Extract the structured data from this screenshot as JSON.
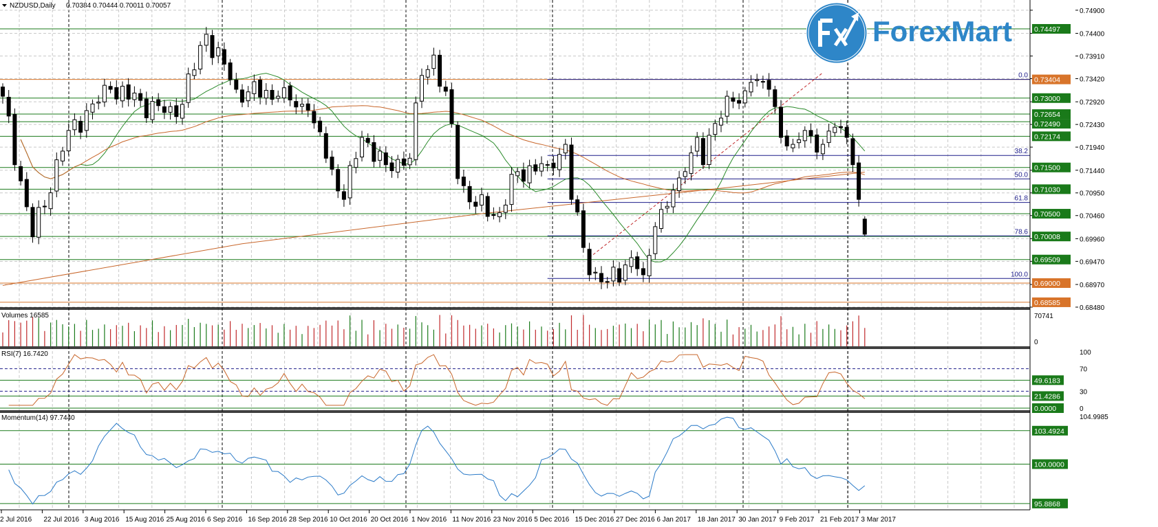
{
  "header": {
    "symbol": "NZDUSD,Daily",
    "ohlc": "0.70384 0.70444 0.70011 0.70057"
  },
  "logo": {
    "text": "ForexMart",
    "mark": "Fx"
  },
  "colors": {
    "up": "#1a7a1a",
    "down": "#c0282a",
    "level_green": "#1a7a1a",
    "level_orange": "#d8742a",
    "fib": "#1d1d8a",
    "ma_fast": "#2a8a2a",
    "ma_slow": "#c8662a",
    "rsi": "#c8662a",
    "momentum": "#2a7ac8"
  },
  "chart_data": {
    "type": "candlestick",
    "title": "NZDUSD,Daily",
    "ylim": [
      0.6848,
      0.749
    ],
    "bar_count": 145,
    "close_anchors": [
      [
        0,
        0.7304
      ],
      [
        5,
        0.7
      ],
      [
        11,
        0.723
      ],
      [
        18,
        0.7319
      ],
      [
        29,
        0.726
      ],
      [
        34,
        0.7438
      ],
      [
        39,
        0.7319
      ],
      [
        46,
        0.7304
      ],
      [
        51,
        0.7274
      ],
      [
        54,
        0.717
      ],
      [
        57,
        0.7081
      ],
      [
        60,
        0.7215
      ],
      [
        64,
        0.7156
      ],
      [
        68,
        0.717
      ],
      [
        70,
        0.7349
      ],
      [
        72,
        0.7393
      ],
      [
        75,
        0.7245
      ],
      [
        76,
        0.7126
      ],
      [
        79,
        0.7066
      ],
      [
        83,
        0.7052
      ],
      [
        86,
        0.7141
      ],
      [
        91,
        0.7156
      ],
      [
        94,
        0.72
      ],
      [
        95,
        0.7081
      ],
      [
        97,
        0.6977
      ],
      [
        98,
        0.6918
      ],
      [
        101,
        0.6903
      ],
      [
        105,
        0.6955
      ],
      [
        107,
        0.6918
      ],
      [
        109,
        0.7022
      ],
      [
        111,
        0.7066
      ],
      [
        114,
        0.7141
      ],
      [
        116,
        0.7215
      ],
      [
        117,
        0.7156
      ],
      [
        119,
        0.7245
      ],
      [
        121,
        0.7304
      ],
      [
        123,
        0.7289
      ],
      [
        125,
        0.7334
      ],
      [
        128,
        0.7319
      ],
      [
        130,
        0.7215
      ],
      [
        132,
        0.72
      ],
      [
        134,
        0.723
      ],
      [
        137,
        0.72
      ],
      [
        139,
        0.7237
      ],
      [
        141,
        0.7215
      ],
      [
        142,
        0.7156
      ],
      [
        143,
        0.7081
      ],
      [
        144,
        0.70057
      ]
    ],
    "last_bar": {
      "open": 0.70384,
      "high": 0.70444,
      "low": 0.70011,
      "close": 0.70057
    },
    "ma_long_anchors": [
      [
        0,
        0.6895
      ],
      [
        40,
        0.6985
      ],
      [
        80,
        0.705
      ],
      [
        120,
        0.7105
      ],
      [
        144,
        0.714
      ]
    ],
    "price_ticks": [
      "0.74900",
      "0.74400",
      "0.73910",
      "0.73420",
      "0.72920",
      "0.72430",
      "0.71940",
      "0.71440",
      "0.70950",
      "0.70460",
      "0.69960",
      "0.69470",
      "0.68970",
      "0.68480"
    ],
    "levels": [
      {
        "value": "0.74497",
        "color": "green"
      },
      {
        "value": "0.73404",
        "color": "orange"
      },
      {
        "value": "0.73000",
        "color": "green"
      },
      {
        "value": "0.72654",
        "color": "green"
      },
      {
        "value": "0.72490",
        "color": "green"
      },
      {
        "value": "0.72174",
        "color": "green"
      },
      {
        "value": "0.71500",
        "color": "green"
      },
      {
        "value": "0.71030",
        "color": "green"
      },
      {
        "value": "0.70500",
        "color": "green"
      },
      {
        "value": "0.70008",
        "color": "green"
      },
      {
        "value": "0.69509",
        "color": "green"
      },
      {
        "value": "0.69000",
        "color": "orange"
      },
      {
        "value": "0.68585",
        "color": "orange"
      }
    ],
    "fibonacci": {
      "start_bar": 91,
      "high": 0.73404,
      "low": 0.691,
      "levels": [
        "0.0",
        "38.2",
        "50.0",
        "61.8",
        "78.6",
        "100.0"
      ]
    },
    "trendline": {
      "from": [
        98,
        0.6955
      ],
      "to": [
        137,
        0.7355
      ]
    },
    "dates": [
      "2 Jul 2016",
      "22 Jul 2016",
      "3 Aug 2016",
      "15 Aug 2016",
      "25 Aug 2016",
      "6 Sep 2016",
      "16 Sep 2016",
      "28 Sep 2016",
      "10 Oct 2016",
      "20 Oct 2016",
      "1 Nov 2016",
      "11 Nov 2016",
      "23 Nov 2016",
      "5 Dec 2016",
      "15 Dec 2016",
      "27 Dec 2016",
      "6 Jan 2017",
      "18 Jan 2017",
      "30 Jan 2017",
      "9 Feb 2017",
      "21 Feb 2017",
      "3 Mar 2017"
    ],
    "volumes": {
      "label": "Volumes 16585",
      "max": "70741",
      "min": "0",
      "ylim": [
        0,
        70741
      ]
    },
    "rsi": {
      "label": "RSI(7) 16.7420",
      "ticks": [
        "100",
        "70",
        "30",
        "0"
      ],
      "levels": [
        "49.6183",
        "21.4286",
        "0.0000"
      ],
      "ylim": [
        0,
        100
      ]
    },
    "momentum": {
      "label": "Momentum(14) 97.7440",
      "ticks": [
        "104.9985"
      ],
      "levels": [
        "103.4924",
        "100.0000",
        "95.8868"
      ],
      "ylim": [
        95.3,
        105.2
      ]
    }
  }
}
